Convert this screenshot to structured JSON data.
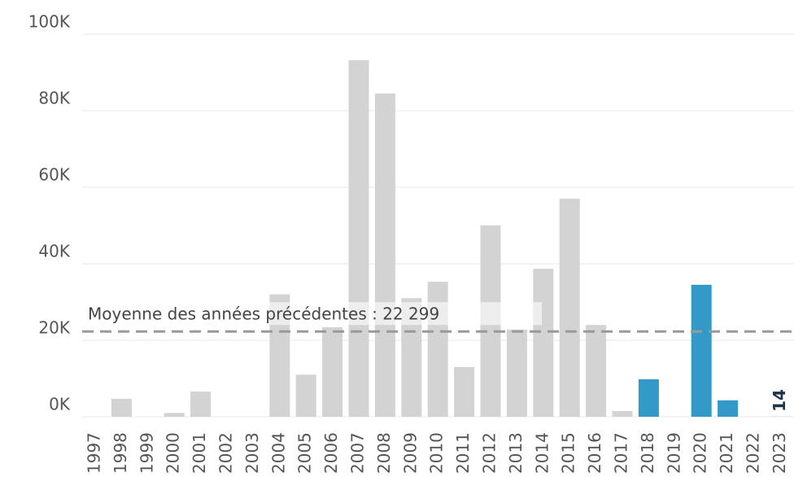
{
  "chart_data": {
    "type": "bar",
    "categories": [
      "1997",
      "1998",
      "1999",
      "2000",
      "2001",
      "2002",
      "2003",
      "2004",
      "2005",
      "2006",
      "2007",
      "2008",
      "2009",
      "2010",
      "2011",
      "2012",
      "2013",
      "2014",
      "2015",
      "2016",
      "2017",
      "2018",
      "2019",
      "2020",
      "2021",
      "2022",
      "2023"
    ],
    "values": [
      0,
      4700,
      0,
      1000,
      6600,
      0,
      0,
      32000,
      11000,
      23400,
      93200,
      84500,
      31000,
      35300,
      13000,
      50000,
      22800,
      38700,
      57000,
      24000,
      1500,
      9800,
      0,
      34500,
      4300,
      0,
      14
    ],
    "colors": [
      "#d3d3d3",
      "#d3d3d3",
      "#d3d3d3",
      "#d3d3d3",
      "#d3d3d3",
      "#d3d3d3",
      "#d3d3d3",
      "#d3d3d3",
      "#d3d3d3",
      "#d3d3d3",
      "#d3d3d3",
      "#d3d3d3",
      "#d3d3d3",
      "#d3d3d3",
      "#d3d3d3",
      "#d3d3d3",
      "#d3d3d3",
      "#d3d3d3",
      "#d3d3d3",
      "#d3d3d3",
      "#d3d3d3",
      "#3399c6",
      "#3399c6",
      "#3399c6",
      "#3399c6",
      "#3399c6",
      "#3399c6"
    ],
    "ylim": [
      0,
      100000
    ],
    "yticks": [
      {
        "value": 0,
        "label": "0K"
      },
      {
        "value": 20000,
        "label": "20K"
      },
      {
        "value": 40000,
        "label": "40K"
      },
      {
        "value": 60000,
        "label": "60K"
      },
      {
        "value": 80000,
        "label": "80K"
      },
      {
        "value": 100000,
        "label": "100K"
      }
    ],
    "grid": true,
    "average": {
      "value": 22299,
      "label": "Moyenne des années précédentes : 22 299"
    }
  }
}
